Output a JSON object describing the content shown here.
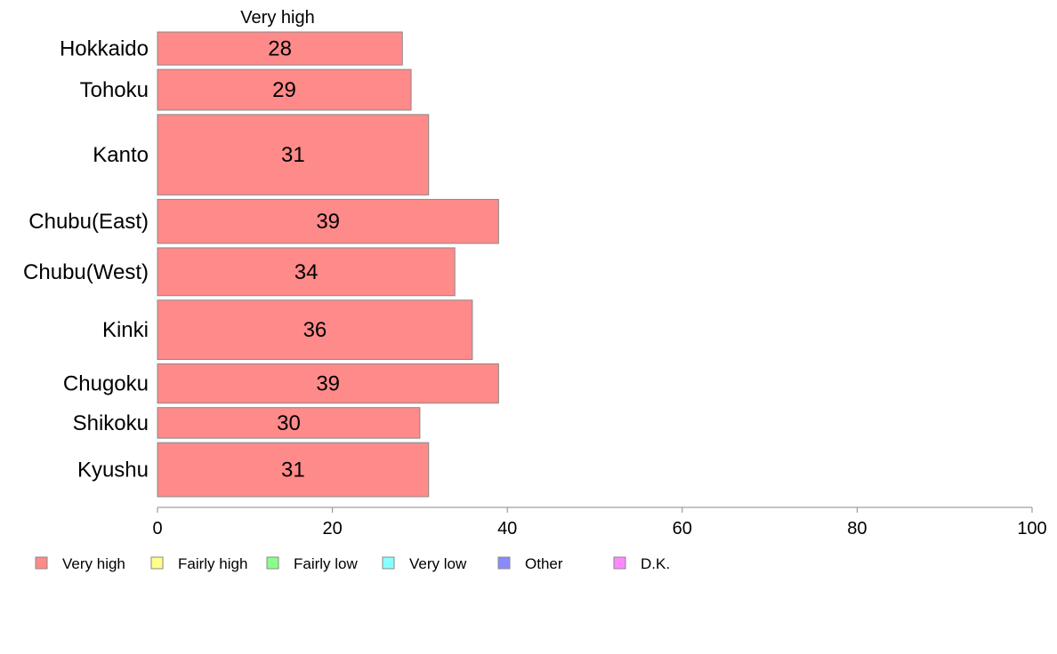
{
  "chart_data": {
    "type": "bar",
    "orientation": "horizontal",
    "stacked": true,
    "header": "Very high",
    "categories": [
      "Hokkaido",
      "Tohoku",
      "Kanto",
      "Chubu(East)",
      "Chubu(West)",
      "Kinki",
      "Chugoku",
      "Shikoku",
      "Kyushu"
    ],
    "category_weights": [
      0.69,
      0.85,
      1.68,
      0.92,
      1.0,
      1.24,
      0.82,
      0.64,
      1.13
    ],
    "series": [
      {
        "name": "Very high",
        "color": "#ff8a8a",
        "values": [
          28,
          29,
          31,
          39,
          34,
          36,
          39,
          30,
          31
        ]
      }
    ],
    "data_labels": [
      "28",
      "29",
      "31",
      "39",
      "34",
      "36",
      "39",
      "30",
      "31"
    ],
    "xlim": [
      0,
      100
    ],
    "xticks": [
      0,
      20,
      40,
      60,
      80,
      100
    ],
    "xtick_labels": [
      "0",
      "20",
      "40",
      "60",
      "80",
      "100"
    ],
    "grid": false,
    "legend_position": "bottom",
    "legend": [
      {
        "label": "Very high",
        "color": "#ff8a8a"
      },
      {
        "label": "Fairly high",
        "color": "#ffff8a"
      },
      {
        "label": "Fairly low",
        "color": "#8aff8a"
      },
      {
        "label": "Very low",
        "color": "#8affff"
      },
      {
        "label": "Other",
        "color": "#8a8aff"
      },
      {
        "label": "D.K.",
        "color": "#ff8aff"
      }
    ]
  }
}
